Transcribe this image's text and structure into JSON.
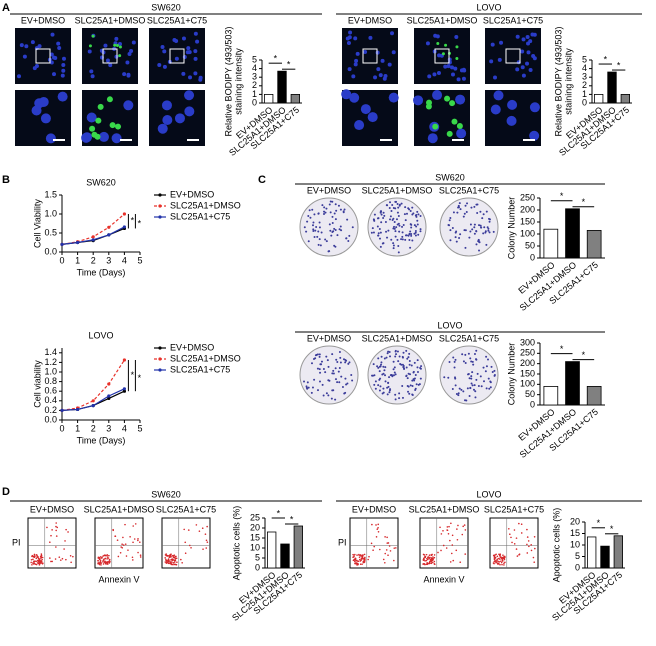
{
  "panel_letters": [
    "A",
    "B",
    "C",
    "D"
  ],
  "image_groups": [
    {
      "title": "SW620",
      "labels": [
        "EV+DMSO",
        "SLC25A1+DMSO",
        "SLC25A1+C75"
      ]
    },
    {
      "title": "LOVO",
      "labels": [
        "EV+DMSO",
        "SLC25A1+DMSO",
        "SLC25A1+C75"
      ]
    },
    {
      "title": "SW620",
      "labels": [
        "EV+DMSO",
        "SLC25A1+DMSO",
        "SLC25A1+C75"
      ]
    },
    {
      "title": "LOVO",
      "labels": [
        "EV+DMSO",
        "SLC25A1+DMSO",
        "SLC25A1+C75"
      ]
    },
    {
      "title": "SW620",
      "labels": [
        "EV+DMSO",
        "SLC25A1+DMSO",
        "SLC25A1+C75"
      ],
      "y_label": "PI",
      "x_label": "Annexin V"
    },
    {
      "title": "LOVO",
      "labels": [
        "EV+DMSO",
        "SLC25A1+DMSO",
        "SLC25A1+C75"
      ],
      "y_label": "PI",
      "x_label": "Annexin V"
    }
  ],
  "chart_data": [
    {
      "type": "bar",
      "y_label": [
        "Relative BODIPY (493/503)",
        "staining intensity"
      ],
      "categories": [
        "EV+DMSO",
        "SLC25A1+DMSO",
        "SLC25A1+C75"
      ],
      "values": [
        1.0,
        3.7,
        1.0
      ],
      "colors": [
        "#ffffff",
        "#000000",
        "#808080"
      ],
      "ylim": [
        0,
        5
      ],
      "yticks": [
        0,
        1,
        2,
        3,
        4,
        5
      ],
      "annotations": [
        "*",
        "*"
      ]
    },
    {
      "type": "bar",
      "y_label": [
        "Relative BODIPY (493/503)",
        "staining intensity"
      ],
      "categories": [
        "EV+DMSO",
        "SLC25A1+DMSO",
        "SLC25A1+C75"
      ],
      "values": [
        1.0,
        3.6,
        1.0
      ],
      "colors": [
        "#ffffff",
        "#000000",
        "#808080"
      ],
      "ylim": [
        0,
        5
      ],
      "yticks": [
        0,
        1,
        2,
        3,
        4,
        5
      ],
      "annotations": [
        "*",
        "*"
      ]
    },
    {
      "type": "line",
      "title": "SW620",
      "x_label": "Time (Days)",
      "y_label": "Cell Viability",
      "x": [
        0,
        1,
        2,
        3,
        4
      ],
      "xlim": [
        0,
        5
      ],
      "xticks": [
        0,
        1,
        2,
        3,
        4,
        5
      ],
      "ylim": [
        0,
        1.5
      ],
      "yticks": [
        {
          "value": 0,
          "label": "0.0"
        },
        0.5,
        {
          "value": 1,
          "label": "1.0"
        },
        1.5
      ],
      "series": [
        {
          "name": "EV+DMSO",
          "color": "#000000",
          "values": [
            0.2,
            0.25,
            0.3,
            0.45,
            0.62
          ]
        },
        {
          "name": "SLC25A1+DMSO",
          "color": "#e8312a",
          "values": [
            0.2,
            0.27,
            0.4,
            0.65,
            1.0
          ]
        },
        {
          "name": "SLC25A1+C75",
          "color": "#2233aa",
          "values": [
            0.2,
            0.25,
            0.32,
            0.45,
            0.66
          ]
        }
      ],
      "annotations": [
        "*",
        "*"
      ]
    },
    {
      "type": "line",
      "title": "LOVO",
      "x_label": "Time (Days)",
      "y_label": "Cell viability",
      "x": [
        0,
        1,
        2,
        3,
        4
      ],
      "xlim": [
        0,
        5
      ],
      "xticks": [
        0,
        1,
        2,
        3,
        4,
        5
      ],
      "ylim": [
        0,
        1.5
      ],
      "yticks": [
        {
          "value": 0,
          "label": "0.0"
        },
        0.2,
        0.4,
        0.6,
        0.8,
        {
          "value": 1,
          "label": "1.0"
        },
        1.2,
        1.4
      ],
      "series": [
        {
          "name": "EV+DMSO",
          "color": "#000000",
          "values": [
            0.2,
            0.22,
            0.3,
            0.45,
            0.6
          ]
        },
        {
          "name": "SLC25A1+DMSO",
          "color": "#e8312a",
          "values": [
            0.2,
            0.25,
            0.4,
            0.75,
            1.25
          ]
        },
        {
          "name": "SLC25A1+C75",
          "color": "#2233aa",
          "values": [
            0.2,
            0.22,
            0.3,
            0.5,
            0.65
          ]
        }
      ],
      "annotations": [
        "*",
        "*"
      ]
    },
    {
      "type": "bar",
      "y_label": [
        "Colony Number"
      ],
      "categories": [
        "EV+DMSO",
        "SLC25A1+DMSO",
        "SLC25A1+C75"
      ],
      "values": [
        120,
        205,
        115
      ],
      "colors": [
        "#ffffff",
        "#000000",
        "#808080"
      ],
      "ylim": [
        0,
        250
      ],
      "yticks": [
        0,
        50,
        100,
        150,
        200,
        250
      ],
      "annotations": [
        "*",
        "*"
      ]
    },
    {
      "type": "bar",
      "y_label": [
        "Colony Number"
      ],
      "categories": [
        "EV+DMSO",
        "SLC25A1+DMSO",
        "SLC25A1+C75"
      ],
      "values": [
        90,
        210,
        90
      ],
      "colors": [
        "#ffffff",
        "#000000",
        "#808080"
      ],
      "ylim": [
        0,
        300
      ],
      "yticks": [
        0,
        50,
        100,
        150,
        200,
        250,
        300
      ],
      "annotations": [
        "*",
        "*"
      ]
    },
    {
      "type": "bar",
      "y_label": [
        "Apoptotic cells (%)"
      ],
      "categories": [
        "EV+DMSO",
        "SLC25A1+DMSO",
        "SLC25A1+C75"
      ],
      "values": [
        18,
        12,
        21
      ],
      "colors": [
        "#ffffff",
        "#000000",
        "#808080"
      ],
      "ylim": [
        0,
        25
      ],
      "yticks": [
        0,
        5,
        10,
        15,
        20,
        25
      ],
      "annotations": [
        "*",
        "*"
      ]
    },
    {
      "type": "bar",
      "y_label": [
        "Apoptotic cells (%)"
      ],
      "categories": [
        "EV+DMSO",
        "SLC25A1+DMSO",
        "SLC25A1+C75"
      ],
      "values": [
        13.5,
        9.5,
        14
      ],
      "colors": [
        "#ffffff",
        "#000000",
        "#808080"
      ],
      "ylim": [
        0,
        20
      ],
      "yticks": [
        0,
        5,
        10,
        15,
        20
      ],
      "annotations": [
        "*",
        "*"
      ]
    }
  ]
}
